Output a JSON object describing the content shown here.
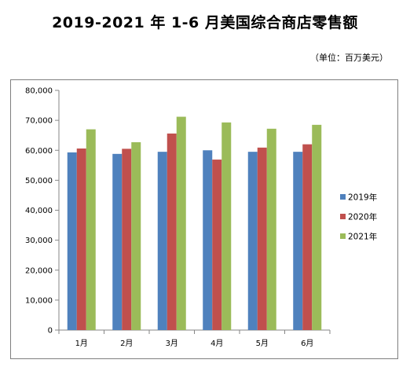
{
  "title": "2019-2021 年 1-6 月美国综合商店零售额",
  "unit_note": "（单位：百万美元）",
  "chart_data": {
    "type": "bar",
    "categories": [
      "1月",
      "2月",
      "3月",
      "4月",
      "5月",
      "6月"
    ],
    "series": [
      {
        "name": "2019年",
        "color": "#4f81bd",
        "values": [
          59300,
          58800,
          59500,
          60000,
          59500,
          59500
        ]
      },
      {
        "name": "2020年",
        "color": "#c0504d",
        "values": [
          60600,
          60500,
          65600,
          56900,
          60900,
          62000
        ]
      },
      {
        "name": "2021年",
        "color": "#9bbb59",
        "values": [
          67000,
          62700,
          71200,
          69300,
          67200,
          68500
        ]
      }
    ],
    "ylim": [
      0,
      80000
    ],
    "yticks": [
      "0",
      "10,000",
      "20,000",
      "30,000",
      "40,000",
      "50,000",
      "60,000",
      "70,000",
      "80,000"
    ],
    "legend_position": "right",
    "grid": false
  }
}
